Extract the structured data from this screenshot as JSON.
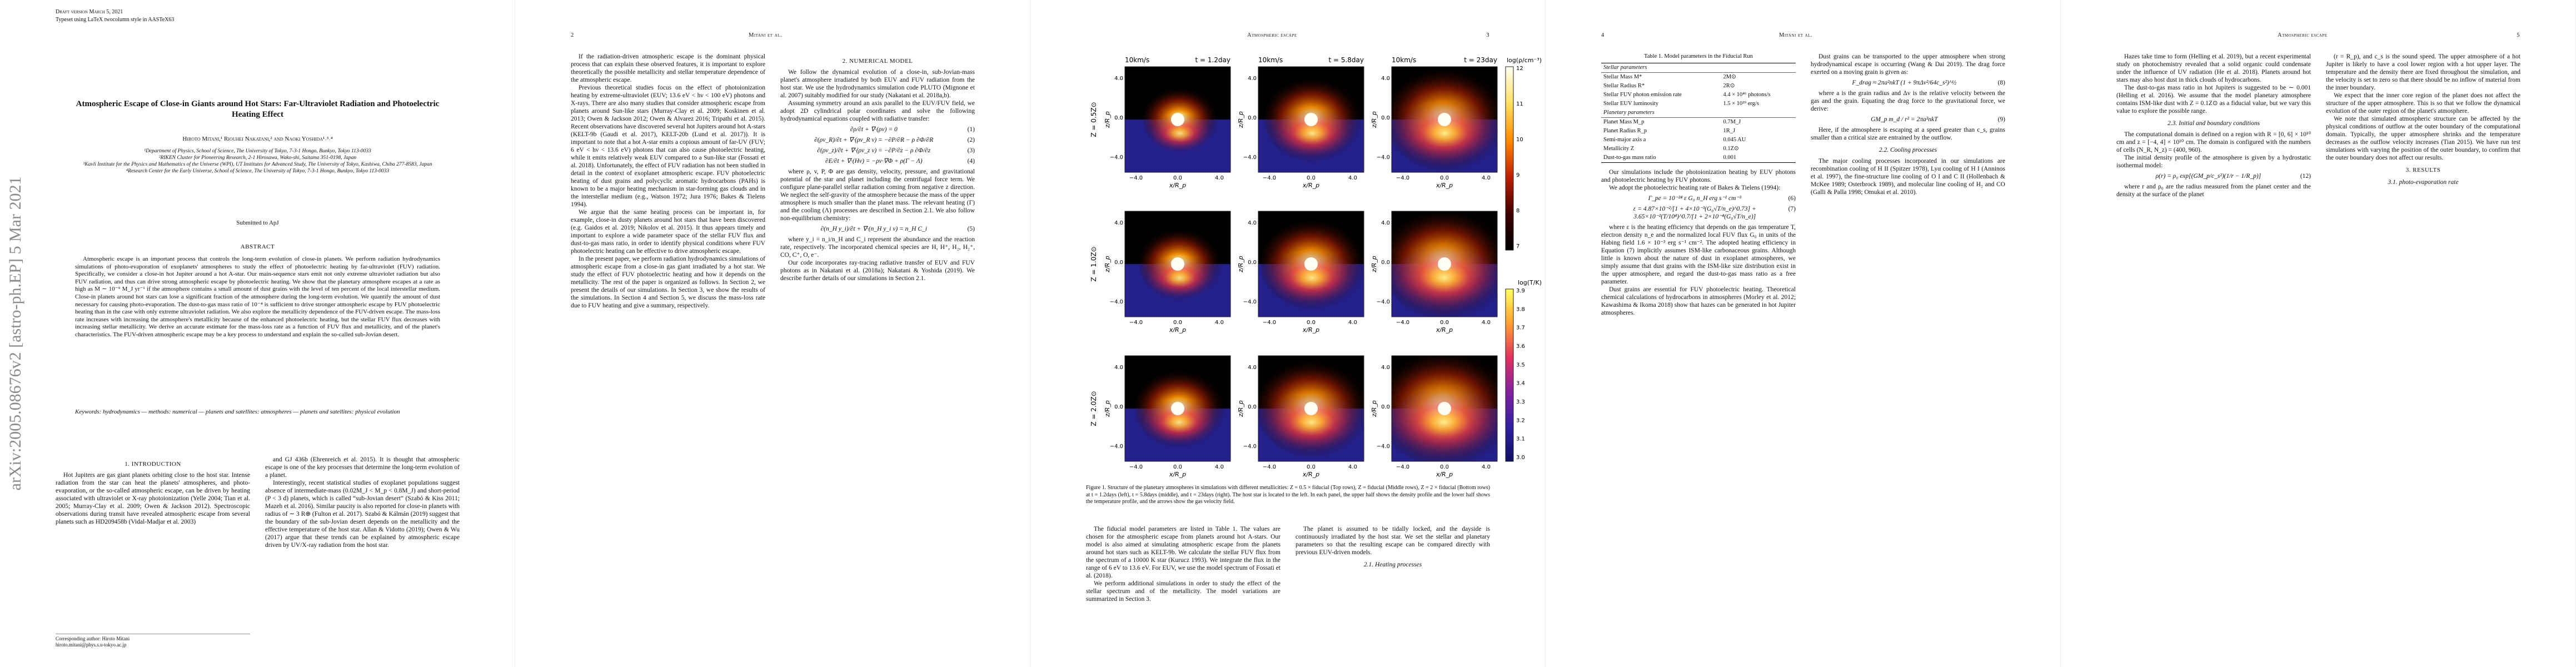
{
  "arxiv_stamp": "arXiv:2005.08676v2  [astro-ph.EP]  5 Mar 2021",
  "pages": [
    {
      "draft": "Draft version March 5, 2021",
      "typeset": "Typeset using LaTeX twocolumn style in AASTeX63",
      "title": "Atmospheric Escape of Close-in Giants around Hot Stars: Far-Ultraviolet Radiation and Photoelectric Heating Effect",
      "authors": "Hiroto Mitani,¹ Riouhei Nakatani,² and Naoki Yoshida¹˒³˒⁴",
      "affiliations": [
        "¹Department of Physics, School of Science, The University of Tokyo, 7-3-1 Hongo, Bunkyo, Tokyo 113-0033",
        "²RIKEN Cluster for Pioneering Research, 2-1 Hirosawa, Wako-shi, Saitama 351-0198, Japan",
        "³Kavli Institute for the Physics and Mathematics of the Universe (WPI), UT Institutes for Advanced Study, The University of Tokyo, Kashiwa, Chiba 277-8583, Japan",
        "⁴Research Center for the Early Universe, School of Science, The University of Tokyo, 7-3-1 Hongo, Bunkyo, Tokyo 113-0033"
      ],
      "submitted": "Submitted to ApJ",
      "abstract_heading": "ABSTRACT",
      "abstract": "Atmospheric escape is an important process that controls the long-term evolution of close-in planets. We perform radiation hydrodynamics simulations of photo-evaporation of exoplanets' atmospheres to study the effect of photoelectric heating by far-ultraviolet (FUV) radiation. Specifically, we consider a close-in hot Jupiter around a hot A-star. Our main-sequence stars emit not only extreme ultraviolet radiation but also FUV radiation, and thus can drive strong atmospheric escape by photoelectric heating. We show that the planetary atmosphere escapes at a rate as high as Ṁ ∼ 10⁻⁹ M_J yr⁻¹ if the atmosphere contains a small amount of dust grains with the level of ten percent of the local interstellar medium. Close-in planets around hot stars can lose a significant fraction of the atmosphere during the long-term evolution. We quantify the amount of dust necessary for causing photo-evaporation. The dust-to-gas mass ratio of 10⁻⁴ is sufficient to drive stronger atmospheric escape by FUV photoelectric heating than in the case with only extreme ultraviolet radiation. We also explore the metallicity dependence of the FUV-driven escape. The mass-loss rate increases with increasing the atmosphere's metallicity because of the enhanced photoelectric heating, but the stellar FUV flux decreases with increasing stellar metallicity. We derive an accurate estimate for the mass-loss rate as a function of FUV flux and metallicity, and of the planet's characteristics. The FUV-driven atmospheric escape may be a key process to understand and explain the so-called sub-Jovian desert.",
      "keywords": "Keywords: hydrodynamics — methods: numerical — planets and satellites: atmospheres — planets and satellites: physical evolution",
      "corresponding": [
        "Corresponding author: Hiroto Mitani",
        "hiroto.mitani@phys.s.u-tokyo.ac.jp"
      ],
      "columns": [
        [
          {
            "h": "1. INTRODUCTION"
          },
          {
            "p": "Hot Jupiters are gas giant planets orbiting close to the host star. Intense radiation from the star can heat the planets' atmospheres, and photo-evaporation, or the so-called atmospheric escape, can be driven by heating associated with ultraviolet or X-ray photoionization (Yelle 2004; Tian et al. 2005; Murray-Clay et al. 2009; Owen & Jackson 2012). Spectroscopic observations during transit have revealed atmospheric escape from several planets such as HD209458b (Vidal-Madjar et al. 2003)"
          }
        ],
        [
          {
            "p": "and GJ 436b (Ehrenreich et al. 2015). It is thought that atmospheric escape is one of the key processes that determine the long-term evolution of a planet."
          },
          {
            "p": "Interestingly, recent statistical studies of exoplanet populations suggest absence of intermediate-mass (0.02M_J < M_p < 0.8M_J) and short-period (P < 3 d) planets, which is called “sub-Jovian desert” (Szabó & Kiss 2011; Mazeh et al. 2016). Similar paucity is also reported for close-in planets with radius of ∼ 3 R⊕ (Fulton et al. 2017). Szabó & Kálmán (2019) suggest that the boundary of the sub-Jovian desert depends on the metallicity and the effective temperature of the host star. Allan & Vidotto (2019); Owen & Wu (2017) argue that these trends can be explained by atmospheric escape driven by UV/X-ray radiation from the host star."
          }
        ]
      ]
    },
    {
      "page_number": "2",
      "running_head": "Mitani et al.",
      "columns": [
        [
          {
            "p": "If the radiation-driven atmospheric escape is the dominant physical process that can explain these observed features, it is important to explore theoretically the possible metallicity and stellar temperature dependence of the atmospheric escape."
          },
          {
            "p": "Previous theoretical studies focus on the effect of photoionization heating by extreme-ultraviolet (EUV; 13.6 eV < hν < 100 eV) photons and X-rays. There are also many studies that consider atmospheric escape from planets around Sun-like stars (Murray-Clay et al. 2009; Koskinen et al. 2013; Owen & Jackson 2012; Owen & Alvarez 2016; Tripathi et al. 2015). Recent observations have discovered several hot Jupiters around hot A-stars (KELT-9b (Gaudi et al. 2017), KELT-20b (Lund et al. 2017)). It is important to note that a hot A-star emits a copious amount of far-UV (FUV; 6 eV < hν < 13.6 eV) photons that can also cause photoelectric heating, while it emits relatively weak EUV compared to a Sun-like star (Fossati et al. 2018). Unfortunately, the effect of FUV radiation has not been studied in detail in the context of exoplanet atmospheric escape. FUV photoelectric heating of dust grains and polycyclic aromatic hydrocarbons (PAHs) is known to be a major heating mechanism in star-forming gas clouds and in the interstellar medium (e.g., Watson 1972; Jura 1976; Bakes & Tielens 1994)."
          },
          {
            "p": "We argue that the same heating process can be important in, for example, close-in dusty planets around hot stars that have been discovered (e.g. Gaidos et al. 2019; Nikolov et al. 2015). It thus appears timely and important to explore a wide parameter space of the stellar FUV flux and dust-to-gas mass ratio, in order to identify physical conditions where FUV photoelectric heating can be effective to drive atmospheric escape."
          },
          {
            "p": "In the present paper, we perform radiation hydrodynamics simulations of atmospheric escape from a close-in gas giant irradiated by a hot star. We study the effect of FUV photoelectric heating and how it depends on the metallicity. The rest of the paper is organized as follows. In Section 2, we present the details of our simulations. In Section 3, we show the results of the simulations. In Section 4 and Section 5, we discuss the mass-loss rate due to FUV heating and give a summary, respectively."
          }
        ],
        [
          {
            "h": "2. NUMERICAL MODEL"
          },
          {
            "p": "We follow the dynamical evolution of a close-in, sub-Jovian-mass planet's atmosphere irradiated by both EUV and FUV radiation from the host star. We use the hydrodynamics simulation code PLUTO (Mignone et al. 2007) suitably modified for our study (Nakatani et al. 2018a,b)."
          },
          {
            "p": "Assuming symmetry around an axis parallel to the EUV/FUV field, we adopt 2D cylindrical polar coordinates and solve the following hydrodynamical equations coupled with radiative transfer:"
          },
          {
            "eq": "∂ρ/∂t + ∇·(ρv) = 0",
            "n": "(1)"
          },
          {
            "eq": "∂(ρv_R)/∂t + ∇·(ρv_R v) = −∂P/∂R − ρ ∂Φ/∂R",
            "n": "(2)"
          },
          {
            "eq": "∂(ρv_z)/∂t + ∇·(ρv_z v) = −∂P/∂z − ρ ∂Φ/∂z",
            "n": "(3)"
          },
          {
            "eq": "∂E/∂t + ∇·(Hv) = −ρv·∇Φ + ρ(Γ − Λ)",
            "n": "(4)"
          },
          {
            "p": "where ρ, v, P, Φ are gas density, velocity, pressure, and gravitational potential of the star and planet including the centrifugal force term. We configure plane-parallel stellar radiation coming from negative z direction. We neglect the self-gravity of the atmosphere because the mass of the upper atmosphere is much smaller than the planet mass. The relevant heating (Γ) and the cooling (Λ) processes are described in Section 2.1. We also follow non-equilibrium chemistry:"
          },
          {
            "eq": "∂(n_H y_i)/∂t + ∇·(n_H y_i v) = n_H C_i",
            "n": "(5)"
          },
          {
            "p": "where y_i = n_i/n_H and C_i represent the abundance and the reaction rate, respectively. The incorporated chemical species are H, H⁺, H₂, H₂⁺, CO, C⁺, O, e⁻."
          },
          {
            "p": "Our code incorporates ray-tracing radiative transfer of EUV and FUV photons as in Nakatani et al. (2018a); Nakatani & Yoshida (2019). We describe further details of our simulations in Section 2.1."
          }
        ]
      ]
    },
    {
      "page_number": "3",
      "running_head": "Atmospheric escape",
      "figure": {
        "velocity_label": "10km/s",
        "time_labels": [
          "t = 1.2day",
          "t = 5.8day",
          "t = 23day"
        ],
        "row_labels": [
          "Z = 0.5Z⊙",
          "Z = 1.0Z⊙",
          "Z = 2.0Z⊙"
        ],
        "x_ticks": [
          "−4.0",
          "0.0",
          "4.0"
        ],
        "y_ticks": [
          "4.0",
          "0.0",
          "−4.0"
        ],
        "x_label": "x/R_p",
        "y_label": "z/R_p",
        "density_label": "log(ρ/cm⁻³)",
        "density_ticks": [
          "12",
          "11",
          "10",
          "9",
          "8",
          "7"
        ],
        "temperature_label": "log(T/K)",
        "temperature_ticks": [
          "3.9",
          "3.8",
          "3.7",
          "3.6",
          "3.5",
          "3.4",
          "3.3",
          "3.2",
          "3.1",
          "3.0"
        ],
        "caption": "Figure 1. Structure of the planetary atmospheres in simulations with different metallicities: Z = 0.5 × fiducial (Top rows), Z = fiducial (Middle rows), Z = 2 × fiducial (Bottom rows) at t = 1.2days (left), t = 5.8days (middle), and t = 23days (right). The host star is located to the left. In each panel, the upper half shows the density profile and the lower half shows the temperature profile, and the arrows show the gas velocity field."
      },
      "columns": [
        [
          {
            "p": "The fiducial model parameters are listed in Table 1. The values are chosen for the atmospheric escape from planets around hot A-stars. Our model is also aimed at simulating atmospheric escape from the planets around hot stars such as KELT-9b. We calculate the stellar FUV flux from the spectrum of a 10000 K star (Kurucz 1993). We integrate the flux in the range of 6 eV to 13.6 eV. For EUV, we use the model spectrum of Fossati et al. (2018)."
          },
          {
            "p": "We perform additional simulations in order to study the effect of the stellar spectrum and of the metallicity. The model variations are summarized in Section 3."
          }
        ],
        [
          {
            "p": "The planet is assumed to be tidally locked, and the dayside is continuously irradiated by the host star. We set the stellar and planetary parameters so that the resulting escape can be compared directly with previous EUV-driven models."
          },
          {
            "sh": "2.1. Heating processes"
          }
        ]
      ]
    },
    {
      "page_number": "4",
      "running_head": "Mitani et al.",
      "table": {
        "caption": "Table 1. Model parameters in the Fiducial Run",
        "rows": [
          [
            "Stellar parameters"
          ],
          [
            "Stellar Mass M*",
            "2M⊙"
          ],
          [
            "Stellar Radius R*",
            "2R⊙"
          ],
          [
            "Stellar FUV photon emission rate",
            "4.4 × 10⁴⁶ photons/s"
          ],
          [
            "Stellar EUV luminosity",
            "1.5 × 10²⁹ erg/s"
          ],
          [
            "Planetary parameters"
          ],
          [
            "Planet Mass M_p",
            "0.7M_J"
          ],
          [
            "Planet Radius R_p",
            "1R_J"
          ],
          [
            "Semi-major axis a",
            "0.045 AU"
          ],
          [
            "Metallicity Z",
            "0.1Z⊙"
          ],
          [
            "Dust-to-gas mass ratio",
            "0.001"
          ]
        ]
      },
      "columns": [
        [
          {
            "p": "Our simulations include the photoionization heating by EUV photons and photoelectric heating by FUV photons."
          },
          {
            "p": "We adopt the photoelectric heating rate of Bakes & Tielens (1994):"
          },
          {
            "eq": "Γ_pe = 10⁻²⁴ ε G₀ n_H erg s⁻¹ cm⁻³",
            "n": "(6)"
          },
          {
            "eq": "ε = 4.87×10⁻²/[1 + 4×10⁻³(G₀√T/n_e)^0.73] + 3.65×10⁻²(T/10⁴)^0.7/[1 + 2×10⁻⁴(G₀√T/n_e)]",
            "n": "(7)"
          },
          {
            "p": "where ε is the heating efficiency that depends on the gas temperature T, electron density n_e and the normalized local FUV flux G₀ in units of the Habing field 1.6 × 10⁻³ erg s⁻¹ cm⁻². The adopted heating efficiency in Equation (7) implicitly assumes ISM-like carbonaceous grains. Although little is known about the nature of dust in exoplanet atmospheres, we simply assume that dust grains with the ISM-like size distribution exist in the upper atmosphere, and regard the dust-to-gas mass ratio as a free parameter."
          },
          {
            "p": "Dust grains are essential for FUV photoelectric heating. Theoretical chemical calculations of hydrocarbons in atmospheres (Morley et al. 2012; Kawashima & Ikoma 2018) show that hazes can be generated in hot Jupiter atmospheres."
          }
        ],
        [
          {
            "p": "Dust grains can be transported to the upper atmosphere when strong hydrodynamical escape is occurring (Wang & Dai 2019). The drag force exerted on a moving grain is given as:"
          },
          {
            "eq": "F_drag ≈ 2πa²nkT (1 + 9πΔv²/64c_s²)^½",
            "n": "(8)"
          },
          {
            "p": "where a is the grain radius and Δv is the relative velocity between the gas and the grain. Equating the drag force to the gravitational force, we derive:"
          },
          {
            "eq": "GM_p m_d / r² = 2πa²nkT",
            "n": "(9)"
          },
          {
            "p": "Here, if the atmosphere is escaping at a speed greater than c_s, grains smaller than a critical size are entrained by the outflow."
          },
          {
            "sh": "2.2. Cooling processes"
          },
          {
            "p": "The major cooling processes incorporated in our simulations are recombination cooling of H II (Spitzer 1978), Lyα cooling of H I (Anninos et al. 1997), the fine-structure line cooling of O I and C II (Hollenbach & McKee 1989; Osterbrock 1989), and molecular line cooling of H₂ and CO (Galli & Palla 1998; Omukai et al. 2010)."
          }
        ]
      ]
    },
    {
      "page_number": "5",
      "running_head": "Atmospheric escape",
      "columns": [
        [
          {
            "p": "Hazes take time to form (Helling et al. 2019), but a recent experimental study on photochemistry revealed that a solid organic could condensate under the influence of UV radiation (He et al. 2018). Planets around hot stars may also host dust in thick clouds of hydrocarbons."
          },
          {
            "p": "The dust-to-gas mass ratio in hot Jupiters is suggested to be ∼ 0.001 (Helling et al. 2016). We assume that the model planetary atmosphere contains ISM-like dust with Z = 0.1Z⊙ as a fiducial value, but we vary this value to explore the possible range."
          },
          {
            "sh": "2.3. Initial and boundary conditions"
          },
          {
            "p": "The computational domain is defined on a region with R = [0, 6] × 10¹⁰ cm and z = [−4, 4] × 10¹⁰ cm. The domain is configured with the numbers of cells (N_R, N_z) = (400, 960)."
          },
          {
            "p": "The initial density profile of the atmosphere is given by a hydrostatic isothermal model:"
          },
          {
            "eq": "ρ(r) = ρ₀ exp[(GM_p/c_s²)(1/r − 1/R_p)]",
            "n": "(12)"
          },
          {
            "p": "where r and ρ₀ are the radius measured from the planet center and the density at the surface of the planet"
          }
        ],
        [
          {
            "p": "(r = R_p), and c_s is the sound speed. The upper atmosphere of a hot Jupiter is likely to have a cool lower region with a hot upper layer. The temperature and the density there are fixed throughout the simulation, and the velocity is set to zero so that there should be no inflow of material from the inner boundary."
          },
          {
            "p": "We expect that the inner core region of the planet does not affect the structure of the upper atmosphere. This is so that we follow the dynamical evolution of the outer region of the planet's atmosphere."
          },
          {
            "p": "We note that simulated atmospheric structure can be affected by the physical conditions of outflow at the outer boundary of the computational domain. Typically, the upper atmosphere shrinks and the temperature decreases as the outflow velocity increases (Tian 2015). We have run test simulations with varying the position of the outer boundary, to confirm that the outer boundary does not affect our results."
          },
          {
            "h": "3. RESULTS"
          },
          {
            "sh": "3.1. photo-evaporation rate"
          }
        ]
      ]
    }
  ]
}
